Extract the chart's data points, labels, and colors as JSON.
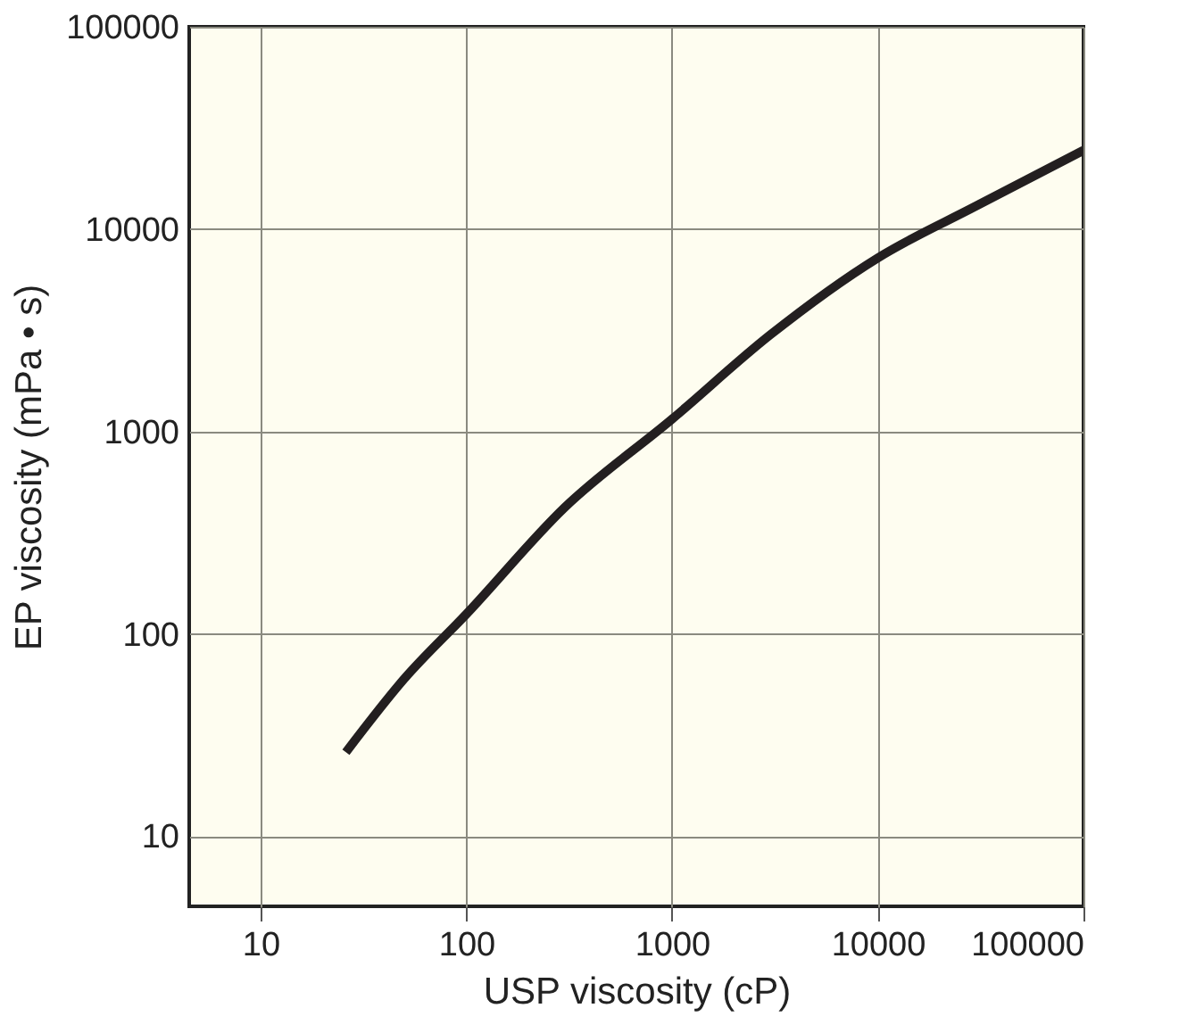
{
  "chart_data": {
    "type": "line",
    "xlabel": "USP viscosity (cP)",
    "ylabel": "EP viscosity (mPa • s)",
    "x": [
      26,
      50,
      100,
      300,
      1000,
      3000,
      10000,
      30000,
      100000
    ],
    "series": [
      {
        "color": "#231f20",
        "values": [
          26,
          60,
          125,
          420,
          1150,
          3000,
          7200,
          13000,
          24500
        ]
      }
    ],
    "log": "xy",
    "xlim": [
      4.5,
      100000
    ],
    "ylim": [
      4.5,
      100000
    ],
    "xticks": [
      10,
      100,
      1000,
      10000,
      100000
    ],
    "yticks": [
      10,
      100,
      1000,
      10000,
      100000
    ],
    "grid": true,
    "marker": "none",
    "line_style": "solid"
  }
}
